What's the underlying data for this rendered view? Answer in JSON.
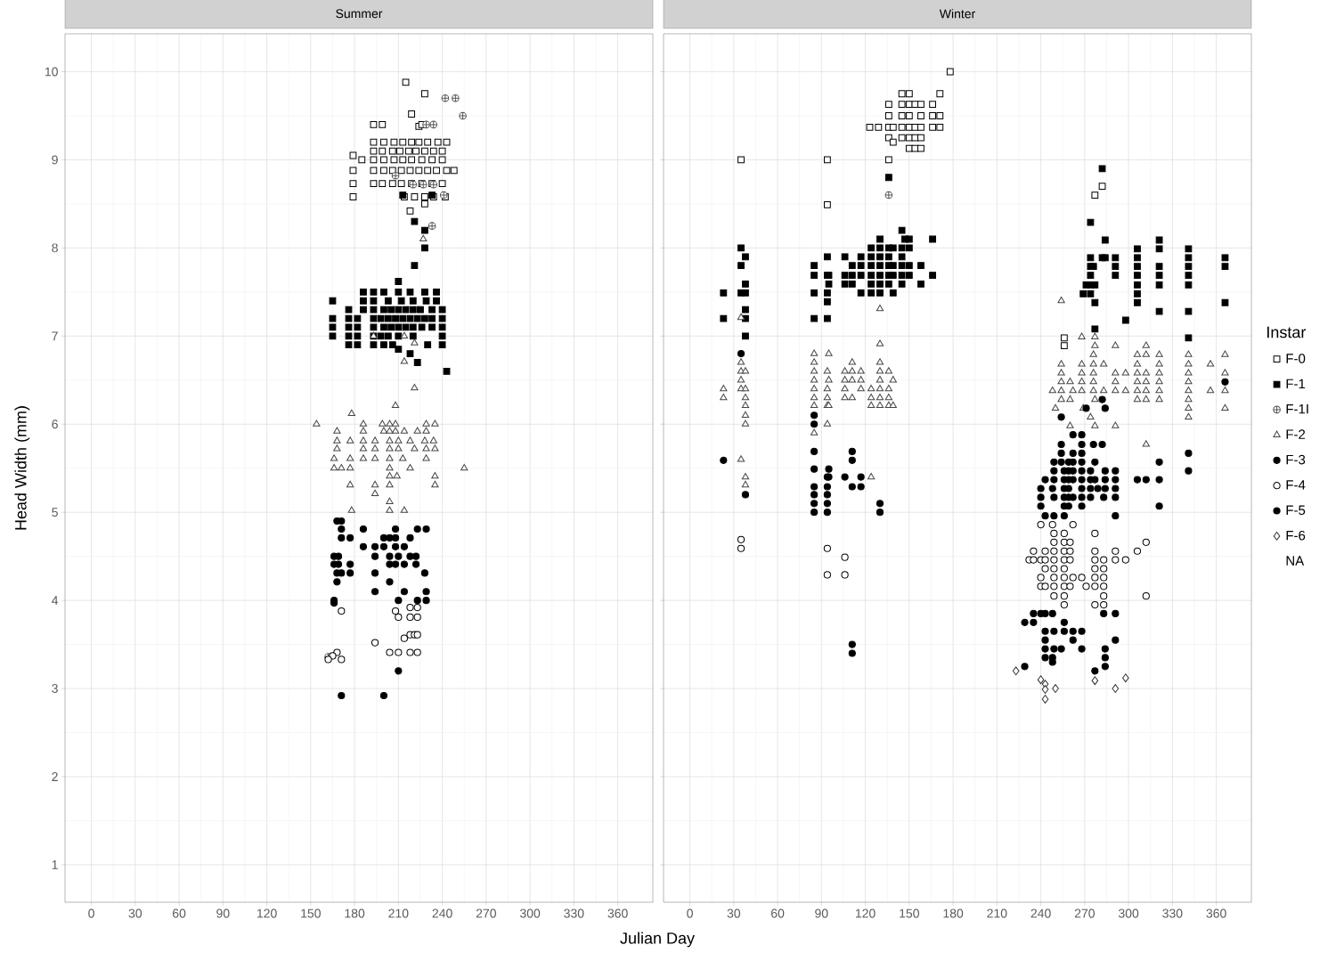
{
  "chart_data": [
    {
      "type": "scatter",
      "title": "Summer",
      "xlabel": "Julian Day",
      "ylabel": "Head Width (mm)",
      "xlim": [
        -18,
        384
      ],
      "ylim": [
        0.575,
        10.43
      ],
      "xticks": [
        0,
        30,
        60,
        90,
        120,
        150,
        180,
        210,
        240,
        270,
        300,
        330,
        360
      ],
      "yticks": [
        1,
        2,
        3,
        4,
        5,
        6,
        7,
        8,
        9,
        10
      ],
      "grid": true,
      "series": [
        {
          "color": "#000000",
          "marker": "square",
          "x": [
            215,
            228,
            219,
            224,
            193,
            199,
            226,
            193,
            200,
            207,
            213,
            219,
            224,
            230,
            237,
            243,
            193,
            199,
            206,
            211,
            217,
            222,
            228,
            234,
            240,
            179,
            185,
            193,
            200,
            207,
            213,
            219,
            226,
            233,
            240,
            179,
            193,
            200,
            206,
            212,
            218,
            224,
            230,
            236,
            243,
            248,
            179,
            193,
            199,
            206,
            212,
            219,
            226,
            233,
            240,
            179,
            214,
            221,
            228,
            234,
            242,
            218,
            228
          ],
          "values": [
            9.88,
            9.75,
            9.52,
            9.38,
            9.4,
            9.4,
            9.4,
            9.2,
            9.2,
            9.2,
            9.2,
            9.2,
            9.2,
            9.2,
            9.2,
            9.2,
            9.1,
            9.1,
            9.1,
            9.1,
            9.1,
            9.1,
            9.1,
            9.1,
            9.1,
            9.05,
            9.0,
            9.0,
            9.0,
            9.0,
            9.0,
            9.0,
            9.0,
            9.0,
            9.0,
            8.88,
            8.88,
            8.88,
            8.88,
            8.88,
            8.88,
            8.88,
            8.88,
            8.88,
            8.88,
            8.88,
            8.73,
            8.73,
            8.73,
            8.73,
            8.73,
            8.73,
            8.73,
            8.73,
            8.73,
            8.58,
            8.58,
            8.58,
            8.58,
            8.58,
            8.58,
            8.42,
            8.5
          ]
        },
        {
          "color": "#000000",
          "marker": "square",
          "x": [
            186,
            193,
            200,
            210,
            218,
            228,
            236,
            165,
            186,
            193,
            203,
            212,
            220,
            229,
            236,
            176,
            186,
            193,
            200,
            205,
            210,
            215,
            220,
            225,
            233,
            240,
            165,
            176,
            182,
            193,
            198,
            203,
            208,
            213,
            218,
            223,
            228,
            233,
            240,
            165,
            176,
            182,
            193,
            200,
            205,
            210,
            215,
            220,
            226,
            233,
            240,
            165,
            176,
            182,
            193,
            198,
            203,
            210,
            220,
            240,
            176,
            182,
            193,
            200,
            206,
            230,
            240,
            221,
            228,
            228,
            221,
            210,
            213,
            233,
            210,
            218,
            223,
            243
          ],
          "values": [
            7.5,
            7.5,
            7.5,
            7.5,
            7.5,
            7.5,
            7.5,
            7.4,
            7.4,
            7.4,
            7.4,
            7.4,
            7.4,
            7.4,
            7.4,
            7.3,
            7.3,
            7.3,
            7.3,
            7.3,
            7.3,
            7.3,
            7.3,
            7.3,
            7.3,
            7.3,
            7.2,
            7.2,
            7.2,
            7.2,
            7.2,
            7.2,
            7.2,
            7.2,
            7.2,
            7.2,
            7.2,
            7.2,
            7.2,
            7.1,
            7.1,
            7.1,
            7.1,
            7.1,
            7.1,
            7.1,
            7.1,
            7.1,
            7.1,
            7.1,
            7.1,
            7.0,
            7.0,
            7.0,
            7.0,
            7.0,
            7.0,
            7.0,
            7.0,
            7.0,
            6.9,
            6.9,
            6.9,
            6.9,
            6.9,
            6.9,
            6.9,
            8.3,
            8.2,
            8.0,
            7.8,
            7.62,
            8.6,
            8.6,
            6.85,
            6.8,
            6.7,
            6.6
          ]
        },
        {
          "color": "#555555",
          "marker": "cross",
          "x": [
            242,
            249,
            254,
            229,
            234,
            208,
            220,
            227,
            234,
            241,
            233,
            162
          ],
          "values": [
            9.7,
            9.7,
            9.5,
            9.4,
            9.4,
            8.82,
            8.72,
            8.72,
            8.72,
            8.6,
            8.25,
            3.36
          ]
        },
        {
          "color": "#444444",
          "marker": "triangle",
          "x": [
            221,
            208,
            178,
            154,
            186,
            199,
            204,
            208,
            229,
            235,
            168,
            186,
            200,
            204,
            208,
            214,
            223,
            229,
            168,
            177,
            186,
            194,
            204,
            210,
            218,
            228,
            234,
            168,
            186,
            194,
            204,
            210,
            221,
            229,
            235,
            166,
            177,
            186,
            194,
            204,
            213,
            229,
            166,
            171,
            177,
            204,
            218,
            255,
            204,
            209,
            235,
            235,
            177,
            194,
            204,
            194,
            204,
            204,
            214,
            178,
            193,
            214,
            221,
            214,
            227
          ],
          "values": [
            6.41,
            6.21,
            6.12,
            6.0,
            6.0,
            6.0,
            6.0,
            6.0,
            6.0,
            6.0,
            5.92,
            5.92,
            5.92,
            5.92,
            5.92,
            5.92,
            5.92,
            5.92,
            5.81,
            5.81,
            5.81,
            5.81,
            5.81,
            5.81,
            5.81,
            5.81,
            5.81,
            5.72,
            5.72,
            5.72,
            5.72,
            5.72,
            5.72,
            5.72,
            5.72,
            5.61,
            5.61,
            5.61,
            5.61,
            5.61,
            5.61,
            5.61,
            5.5,
            5.5,
            5.5,
            5.5,
            5.5,
            5.5,
            5.41,
            5.41,
            5.41,
            5.31,
            5.31,
            5.31,
            5.31,
            5.21,
            5.12,
            5.02,
            5.02,
            5.02,
            7.0,
            7.0,
            6.92,
            6.71,
            8.1
          ]
        },
        {
          "color": "#000000",
          "marker": "circle",
          "x": [
            168,
            171,
            171,
            186,
            208,
            223,
            229,
            171,
            177,
            200,
            204,
            208,
            218,
            186,
            194,
            200,
            208,
            214,
            166,
            169,
            194,
            204,
            210,
            218,
            222,
            166,
            169,
            177,
            204,
            208,
            214,
            222,
            168,
            171,
            177,
            194,
            228,
            168,
            204,
            194,
            214,
            229,
            166,
            210,
            223,
            229
          ],
          "values": [
            4.9,
            4.9,
            4.81,
            4.81,
            4.81,
            4.81,
            4.81,
            4.71,
            4.71,
            4.71,
            4.71,
            4.71,
            4.71,
            4.61,
            4.61,
            4.61,
            4.61,
            4.61,
            4.5,
            4.5,
            4.5,
            4.5,
            4.5,
            4.5,
            4.5,
            4.41,
            4.41,
            4.41,
            4.41,
            4.41,
            4.41,
            4.41,
            4.31,
            4.31,
            4.31,
            4.31,
            4.31,
            4.21,
            4.21,
            4.1,
            4.1,
            4.1,
            4.0,
            4.0,
            4.0,
            4.0
          ]
        },
        {
          "color": "#000000",
          "marker": "circle",
          "x": [
            171,
            208,
            218,
            223,
            210,
            218,
            223,
            218,
            221,
            223,
            214,
            194,
            168,
            204,
            210,
            218,
            223,
            165,
            162,
            171
          ],
          "values": [
            3.88,
            3.88,
            3.92,
            3.92,
            3.81,
            3.81,
            3.81,
            3.61,
            3.61,
            3.61,
            3.57,
            3.52,
            3.41,
            3.41,
            3.41,
            3.41,
            3.41,
            3.37,
            3.33,
            3.33
          ]
        },
        {
          "color": "#000000",
          "marker": "circle",
          "x": [
            210,
            171,
            200,
            166
          ],
          "values": [
            3.2,
            2.92,
            2.92,
            3.97
          ]
        }
      ]
    },
    {
      "type": "scatter",
      "title": "Winter",
      "legend_title": "Instar",
      "legend": "right",
      "tick_labels": "x",
      "xlim": [
        -18,
        384
      ],
      "ylim": [
        0.575,
        10.43
      ],
      "xticks": [
        0,
        30,
        60,
        90,
        120,
        150,
        180,
        210,
        240,
        270,
        300,
        330,
        360
      ],
      "yticks": [
        1,
        2,
        3,
        4,
        5,
        6,
        7,
        8,
        9,
        10
      ],
      "grid": true,
      "series": [
        {
          "name": "F-0",
          "color": "#000000",
          "marker": "square",
          "x": [
            178,
            145,
            150,
            171,
            136,
            145,
            150,
            154,
            158,
            166,
            136,
            145,
            150,
            158,
            166,
            171,
            123,
            129,
            136,
            139,
            145,
            150,
            154,
            158,
            166,
            171,
            136,
            145,
            150,
            154,
            158,
            139,
            150,
            154,
            158,
            35,
            94,
            136,
            94,
            282,
            277,
            256,
            256
          ],
          "values": [
            10.0,
            9.75,
            9.75,
            9.75,
            9.63,
            9.63,
            9.63,
            9.63,
            9.63,
            9.63,
            9.5,
            9.5,
            9.5,
            9.5,
            9.5,
            9.5,
            9.37,
            9.37,
            9.37,
            9.37,
            9.37,
            9.37,
            9.37,
            9.37,
            9.37,
            9.37,
            9.25,
            9.25,
            9.25,
            9.25,
            9.25,
            9.2,
            9.13,
            9.13,
            9.13,
            9.0,
            9.0,
            9.0,
            8.49,
            8.7,
            8.6,
            6.98,
            6.89
          ]
        },
        {
          "name": "F-1",
          "color": "#000000",
          "marker": "square",
          "x": [
            136,
            145,
            130,
            147,
            150,
            166,
            35,
            124,
            130,
            136,
            139,
            145,
            150,
            38,
            94,
            106,
            117,
            124,
            130,
            136,
            145,
            35,
            85,
            111,
            117,
            124,
            130,
            136,
            139,
            145,
            150,
            158,
            85,
            94,
            95,
            106,
            111,
            117,
            124,
            130,
            136,
            139,
            145,
            150,
            166,
            38,
            95,
            106,
            111,
            124,
            130,
            136,
            145,
            158,
            23,
            35,
            38,
            85,
            94,
            117,
            124,
            130,
            139,
            94,
            38,
            23,
            38,
            85,
            94,
            38,
            282,
            274,
            284,
            321,
            306,
            321,
            341,
            274,
            282,
            284,
            291,
            306,
            341,
            366,
            274,
            276,
            291,
            306,
            321,
            341,
            366,
            274,
            291,
            306,
            321,
            341,
            271,
            274,
            277,
            306,
            321,
            341,
            269,
            274,
            306,
            277,
            306,
            366,
            321,
            341,
            298,
            277,
            341
          ],
          "values": [
            8.8,
            8.2,
            8.1,
            8.1,
            8.1,
            8.1,
            8.0,
            8.0,
            8.0,
            8.0,
            8.0,
            8.0,
            8.0,
            7.9,
            7.9,
            7.9,
            7.9,
            7.9,
            7.9,
            7.9,
            7.9,
            7.8,
            7.8,
            7.8,
            7.8,
            7.8,
            7.8,
            7.8,
            7.8,
            7.8,
            7.8,
            7.8,
            7.69,
            7.69,
            7.69,
            7.69,
            7.69,
            7.69,
            7.69,
            7.69,
            7.69,
            7.69,
            7.69,
            7.69,
            7.69,
            7.59,
            7.59,
            7.59,
            7.59,
            7.59,
            7.59,
            7.59,
            7.59,
            7.59,
            7.49,
            7.49,
            7.49,
            7.49,
            7.49,
            7.49,
            7.49,
            7.49,
            7.49,
            7.39,
            7.3,
            7.2,
            7.2,
            7.2,
            7.2,
            7.0,
            8.9,
            8.29,
            8.09,
            8.09,
            7.99,
            7.99,
            7.99,
            7.89,
            7.89,
            7.89,
            7.89,
            7.89,
            7.89,
            7.89,
            7.79,
            7.79,
            7.79,
            7.79,
            7.79,
            7.79,
            7.79,
            7.69,
            7.69,
            7.69,
            7.69,
            7.69,
            7.58,
            7.58,
            7.58,
            7.58,
            7.58,
            7.58,
            7.48,
            7.48,
            7.48,
            7.38,
            7.38,
            7.38,
            7.28,
            7.28,
            7.18,
            7.08,
            6.98
          ]
        },
        {
          "name": "F-1I",
          "color": "#555555",
          "marker": "cross",
          "x": [
            136
          ],
          "values": [
            8.6
          ]
        },
        {
          "name": "F-2",
          "color": "#444444",
          "marker": "triangle",
          "x": [
            130,
            35,
            130,
            85,
            95,
            35,
            85,
            111,
            130,
            35,
            38,
            85,
            94,
            106,
            111,
            117,
            130,
            136,
            35,
            85,
            95,
            106,
            111,
            117,
            130,
            139,
            23,
            35,
            38,
            85,
            94,
            106,
            117,
            124,
            130,
            136,
            23,
            38,
            85,
            94,
            106,
            111,
            124,
            130,
            136,
            38,
            85,
            94,
            95,
            124,
            130,
            136,
            139,
            38,
            38,
            94,
            85,
            35,
            38,
            124,
            38,
            254,
            268,
            277,
            277,
            291,
            312,
            276,
            306,
            312,
            321,
            341,
            366,
            254,
            268,
            276,
            283,
            306,
            321,
            341,
            356,
            254,
            268,
            276,
            291,
            298,
            306,
            312,
            321,
            341,
            366,
            254,
            260,
            268,
            276,
            291,
            306,
            312,
            321,
            341,
            248,
            254,
            262,
            268,
            276,
            283,
            291,
            298,
            306,
            312,
            321,
            341,
            356,
            366,
            254,
            260,
            277,
            306,
            312,
            321,
            341,
            250,
            269,
            341,
            366,
            274,
            341,
            260,
            277,
            291,
            312
          ],
          "values": [
            7.31,
            7.21,
            6.91,
            6.8,
            6.8,
            6.7,
            6.7,
            6.7,
            6.7,
            6.6,
            6.6,
            6.6,
            6.6,
            6.6,
            6.6,
            6.6,
            6.6,
            6.6,
            6.5,
            6.5,
            6.5,
            6.5,
            6.5,
            6.5,
            6.5,
            6.5,
            6.4,
            6.4,
            6.4,
            6.4,
            6.4,
            6.4,
            6.4,
            6.4,
            6.4,
            6.4,
            6.3,
            6.3,
            6.3,
            6.3,
            6.3,
            6.3,
            6.3,
            6.3,
            6.3,
            6.21,
            6.21,
            6.21,
            6.21,
            6.21,
            6.21,
            6.21,
            6.21,
            6.1,
            6.0,
            6.0,
            5.9,
            5.6,
            5.4,
            5.4,
            5.31,
            7.4,
            6.99,
            6.99,
            6.89,
            6.89,
            6.89,
            6.79,
            6.79,
            6.79,
            6.79,
            6.79,
            6.79,
            6.68,
            6.68,
            6.68,
            6.68,
            6.68,
            6.68,
            6.68,
            6.68,
            6.58,
            6.58,
            6.58,
            6.58,
            6.58,
            6.58,
            6.58,
            6.58,
            6.58,
            6.58,
            6.48,
            6.48,
            6.48,
            6.48,
            6.48,
            6.48,
            6.48,
            6.48,
            6.48,
            6.38,
            6.38,
            6.38,
            6.38,
            6.38,
            6.38,
            6.38,
            6.38,
            6.38,
            6.38,
            6.38,
            6.38,
            6.38,
            6.38,
            6.28,
            6.28,
            6.28,
            6.28,
            6.28,
            6.28,
            6.28,
            6.18,
            6.18,
            6.18,
            6.18,
            6.08,
            6.08,
            5.98,
            5.98,
            5.98,
            5.77
          ]
        },
        {
          "name": "F-3",
          "color": "#000000",
          "marker": "circle",
          "x": [
            35,
            85,
            85,
            23,
            85,
            111,
            111,
            85,
            95,
            94,
            95,
            106,
            117,
            85,
            94,
            111,
            117,
            38,
            85,
            94,
            85,
            94,
            130,
            85,
            94,
            130,
            282,
            271,
            284,
            254,
            262,
            268,
            254,
            268,
            276,
            282,
            254,
            262,
            268,
            341,
            249,
            254,
            259,
            262,
            268,
            277,
            321,
            249,
            256,
            259,
            262,
            268,
            274,
            284,
            291,
            341,
            243,
            249,
            256,
            259,
            262,
            268,
            274,
            277,
            284,
            291,
            306,
            312,
            321,
            240,
            248,
            256,
            259,
            268,
            274,
            279,
            284,
            291,
            240,
            249,
            256,
            259,
            262,
            268,
            274,
            283,
            291,
            240,
            256,
            259,
            268,
            321,
            243,
            249,
            256,
            291,
            366
          ],
          "values": [
            6.8,
            6.1,
            6.0,
            5.59,
            5.69,
            5.69,
            5.59,
            5.49,
            5.49,
            5.4,
            5.4,
            5.4,
            5.4,
            5.29,
            5.29,
            5.29,
            5.29,
            5.2,
            5.2,
            5.2,
            5.1,
            5.1,
            5.1,
            5.0,
            5.0,
            5.0,
            6.28,
            6.18,
            6.18,
            6.08,
            5.88,
            5.88,
            5.77,
            5.77,
            5.77,
            5.77,
            5.67,
            5.67,
            5.67,
            5.67,
            5.57,
            5.57,
            5.57,
            5.57,
            5.57,
            5.57,
            5.57,
            5.47,
            5.47,
            5.47,
            5.47,
            5.47,
            5.47,
            5.47,
            5.47,
            5.47,
            5.37,
            5.37,
            5.37,
            5.37,
            5.37,
            5.37,
            5.37,
            5.37,
            5.37,
            5.37,
            5.37,
            5.37,
            5.37,
            5.27,
            5.27,
            5.27,
            5.27,
            5.27,
            5.27,
            5.27,
            5.27,
            5.27,
            5.17,
            5.17,
            5.17,
            5.17,
            5.17,
            5.17,
            5.17,
            5.17,
            5.17,
            5.07,
            5.07,
            5.07,
            5.07,
            5.07,
            4.96,
            4.96,
            4.96,
            4.96,
            6.48
          ]
        },
        {
          "name": "F-4",
          "color": "#000000",
          "marker": "circle",
          "x": [
            35,
            35,
            94,
            106,
            94,
            106,
            240,
            248,
            262,
            249,
            256,
            277,
            249,
            256,
            260,
            312,
            235,
            243,
            249,
            256,
            260,
            277,
            291,
            306,
            232,
            235,
            240,
            243,
            249,
            256,
            260,
            277,
            283,
            291,
            298,
            243,
            249,
            256,
            277,
            283,
            240,
            249,
            256,
            262,
            268,
            277,
            283,
            240,
            243,
            249,
            256,
            260,
            271,
            277,
            283,
            249,
            256,
            283,
            312,
            256,
            277,
            283
          ],
          "values": [
            4.69,
            4.59,
            4.59,
            4.49,
            4.29,
            4.29,
            4.86,
            4.86,
            4.86,
            4.76,
            4.76,
            4.76,
            4.66,
            4.66,
            4.66,
            4.66,
            4.56,
            4.56,
            4.56,
            4.56,
            4.56,
            4.56,
            4.56,
            4.56,
            4.46,
            4.46,
            4.46,
            4.46,
            4.46,
            4.46,
            4.46,
            4.46,
            4.46,
            4.46,
            4.46,
            4.36,
            4.36,
            4.36,
            4.36,
            4.36,
            4.26,
            4.26,
            4.26,
            4.26,
            4.26,
            4.26,
            4.26,
            4.16,
            4.16,
            4.16,
            4.16,
            4.16,
            4.16,
            4.16,
            4.16,
            4.05,
            4.05,
            4.05,
            4.05,
            3.95,
            3.95,
            3.95
          ]
        },
        {
          "name": "F-5",
          "color": "#000000",
          "marker": "circle",
          "x": [
            111,
            111,
            235,
            240,
            243,
            248,
            283,
            291,
            229,
            235,
            256,
            243,
            249,
            256,
            262,
            268,
            243,
            262,
            291,
            243,
            249,
            254,
            268,
            284,
            243,
            248,
            284,
            248,
            229,
            284,
            277
          ],
          "values": [
            3.5,
            3.4,
            3.85,
            3.85,
            3.85,
            3.85,
            3.85,
            3.85,
            3.75,
            3.75,
            3.75,
            3.65,
            3.65,
            3.65,
            3.65,
            3.65,
            3.55,
            3.55,
            3.55,
            3.45,
            3.45,
            3.45,
            3.45,
            3.45,
            3.35,
            3.35,
            3.35,
            3.3,
            3.25,
            3.25,
            3.2
          ]
        },
        {
          "name": "F-6",
          "color": "#333333",
          "marker": "diamond",
          "x": [
            223,
            240,
            243,
            250,
            243,
            243,
            277,
            291,
            298
          ],
          "values": [
            3.2,
            3.1,
            3.05,
            3.0,
            2.99,
            2.88,
            3.09,
            3.0,
            3.12
          ]
        },
        {
          "name": "NA",
          "marker": "none"
        }
      ]
    }
  ]
}
